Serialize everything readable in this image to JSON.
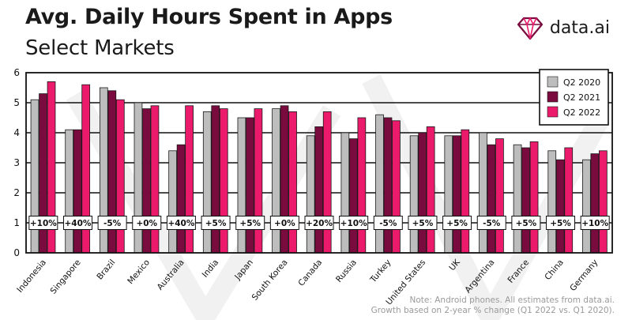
{
  "header": {
    "title": "Avg. Daily Hours Spent in Apps",
    "subtitle": "Select Markets",
    "brand": "data.ai"
  },
  "footnote": {
    "line1": "Note: Android phones. All estimates from data.ai.",
    "line2": "Growth based on 2-year % change (Q1 2022 vs. Q1 2020)."
  },
  "colors": {
    "q2_2020": "#bdbdbd",
    "q2_2021": "#7a0b3e",
    "q2_2022": "#ec1a6b",
    "frame": "#111111"
  },
  "chart_data": {
    "type": "bar",
    "title": "Avg. Daily Hours Spent in Apps",
    "subtitle": "Select Markets",
    "ylim": [
      0,
      6
    ],
    "yticks": [
      0,
      1,
      2,
      3,
      4,
      5,
      6
    ],
    "grid": true,
    "legend_position": "top-right",
    "categories": [
      "Indonesia",
      "Singapore",
      "Brazil",
      "Mexico",
      "Australia",
      "India",
      "Japan",
      "South Korea",
      "Canada",
      "Russia",
      "Turkey",
      "United States",
      "UK",
      "Argentina",
      "France",
      "China",
      "Germany"
    ],
    "series": [
      {
        "name": "Q2 2020",
        "values": [
          5.1,
          4.1,
          5.5,
          5.0,
          3.4,
          4.7,
          4.5,
          4.8,
          3.9,
          4.0,
          4.6,
          3.9,
          3.9,
          4.0,
          3.6,
          3.4,
          3.1
        ]
      },
      {
        "name": "Q2 2021",
        "values": [
          5.3,
          4.1,
          5.4,
          4.8,
          3.6,
          4.9,
          4.5,
          4.9,
          4.2,
          3.8,
          4.5,
          4.0,
          3.9,
          3.6,
          3.5,
          3.1,
          3.3
        ]
      },
      {
        "name": "Q2 2022",
        "values": [
          5.7,
          5.6,
          5.1,
          4.9,
          4.9,
          4.8,
          4.8,
          4.7,
          4.7,
          4.5,
          4.4,
          4.2,
          4.1,
          3.8,
          3.7,
          3.5,
          3.4
        ]
      }
    ],
    "growth_labels": [
      "+10%",
      "+40%",
      "-5%",
      "+0%",
      "+40%",
      "+5%",
      "+5%",
      "+0%",
      "+20%",
      "+10%",
      "-5%",
      "+5%",
      "+5%",
      "-5%",
      "+5%",
      "+5%",
      "+10%"
    ]
  }
}
